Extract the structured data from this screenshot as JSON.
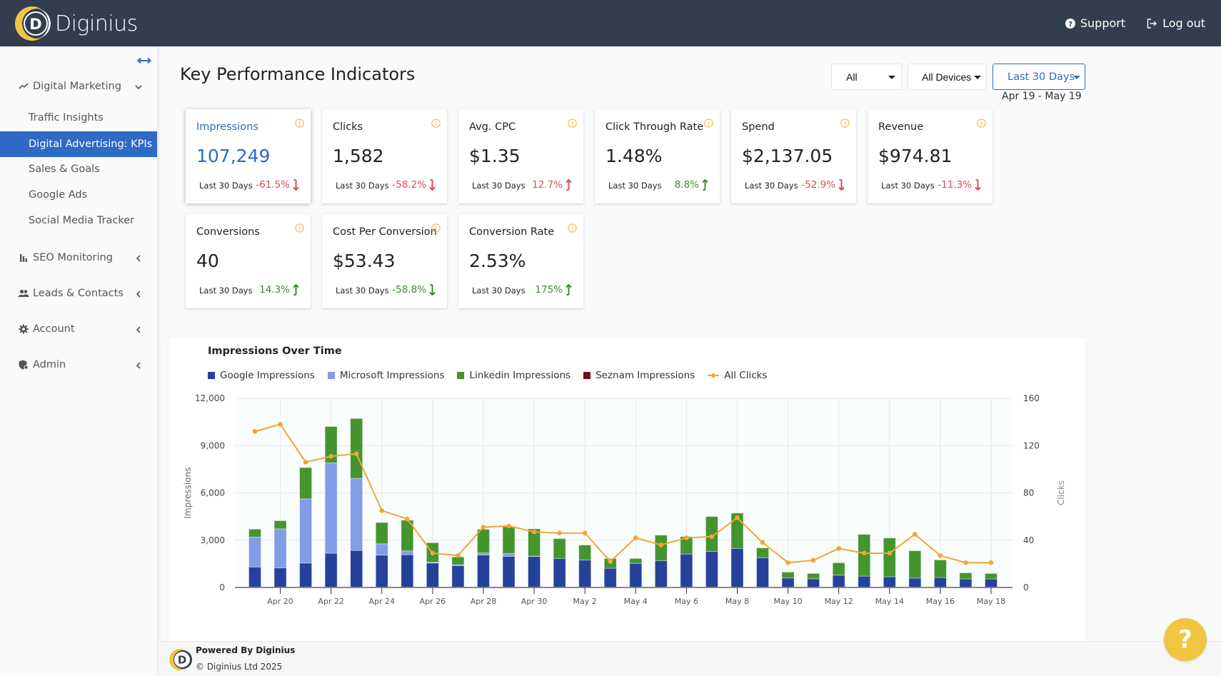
{
  "header": {
    "brand": "Diginius",
    "support_label": "Support",
    "logout_label": "Log out"
  },
  "sidebar": {
    "groups": [
      {
        "label": "Digital Marketing",
        "icon": "trend-line-icon",
        "expanded": true
      },
      {
        "label": "SEO Monitoring",
        "icon": "bar-chart-icon",
        "expanded": false
      },
      {
        "label": "Leads & Contacts",
        "icon": "people-icon",
        "expanded": false
      },
      {
        "label": "Account",
        "icon": "gear-icon",
        "expanded": false
      },
      {
        "label": "Admin",
        "icon": "admin-shield-icon",
        "expanded": false
      }
    ],
    "items": [
      {
        "label": "Traffic Insights",
        "active": false
      },
      {
        "label": "Digital Advertising: KPIs",
        "active": true
      },
      {
        "label": "Sales & Goals",
        "active": false
      },
      {
        "label": "Google Ads",
        "active": false
      },
      {
        "label": "Social Media Tracker",
        "active": false
      }
    ]
  },
  "main": {
    "title": "Key Performance Indicators",
    "filters": {
      "platform": "All",
      "device": "All Devices",
      "period": "Last 30 Days",
      "date_range": "Apr 19 - May 19"
    },
    "kpis": [
      {
        "title": "Impressions",
        "value": "107,249",
        "period": "Last 30 Days",
        "delta": "-61.5%",
        "direction": "down",
        "selected": true
      },
      {
        "title": "Clicks",
        "value": "1,582",
        "period": "Last 30 Days",
        "delta": "-58.2%",
        "direction": "down",
        "selected": false
      },
      {
        "title": "Avg. CPC",
        "value": "$1.35",
        "period": "Last 30 Days",
        "delta": "12.7%",
        "direction": "up-bad",
        "selected": false
      },
      {
        "title": "Click Through Rate",
        "value": "1.48%",
        "period": "Last 30 Days",
        "delta": "8.8%",
        "direction": "up",
        "selected": false
      },
      {
        "title": "Spend",
        "value": "$2,137.05",
        "period": "Last 30 Days",
        "delta": "-52.9%",
        "direction": "down",
        "selected": false
      },
      {
        "title": "Revenue",
        "value": "$974.81",
        "period": "Last 30 Days",
        "delta": "-11.3%",
        "direction": "down",
        "selected": false
      },
      {
        "title": "Conversions",
        "value": "40",
        "period": "Last 30 Days",
        "delta": "14.3%",
        "direction": "up",
        "selected": false
      },
      {
        "title": "Cost Per Conversion",
        "value": "$53.43",
        "period": "Last 30 Days",
        "delta": "-58.8%",
        "direction": "down-good",
        "selected": false
      },
      {
        "title": "Conversion Rate",
        "value": "2.53%",
        "period": "Last 30 Days",
        "delta": "175%",
        "direction": "up",
        "selected": false
      }
    ]
  },
  "colors": {
    "accent": "#2f6ac4",
    "header_bg": "#323e4f",
    "logo_yellow": "#f0c53f",
    "negative": "#e04a55",
    "positive": "#3f8a33",
    "google": "#25419a",
    "microsoft": "#839ce8",
    "linkedin": "#45952f",
    "seznam": "#6e0f1f",
    "clicks": "#f2a637"
  },
  "chart_data": {
    "type": "bar",
    "stacked": true,
    "title": "Impressions Over Time",
    "ylabel": "Impressions",
    "y2label": "Clicks",
    "ylim": [
      0,
      12000
    ],
    "y2lim": [
      0,
      160
    ],
    "yticks": [
      "0",
      "3,000",
      "6,000",
      "9,000",
      "12,000"
    ],
    "y2ticks": [
      "0",
      "40",
      "80",
      "120",
      "160"
    ],
    "grid": true,
    "legend_position": "top-left",
    "categories": [
      "Apr 19",
      "Apr 20",
      "Apr 21",
      "Apr 22",
      "Apr 23",
      "Apr 24",
      "Apr 25",
      "Apr 26",
      "Apr 27",
      "Apr 28",
      "Apr 29",
      "Apr 30",
      "May 1",
      "May 2",
      "May 3",
      "May 4",
      "May 5",
      "May 6",
      "May 7",
      "May 8",
      "May 9",
      "May 10",
      "May 11",
      "May 12",
      "May 13",
      "May 14",
      "May 15",
      "May 16",
      "May 17",
      "May 18"
    ],
    "xtick_labels": [
      "Apr 20",
      "Apr 22",
      "Apr 24",
      "Apr 26",
      "Apr 28",
      "Apr 30",
      "May 2",
      "May 4",
      "May 6",
      "May 8",
      "May 10",
      "May 12",
      "May 14",
      "May 16",
      "May 18"
    ],
    "series": [
      {
        "name": "Google Impressions",
        "kind": "bar",
        "color": "#25419a",
        "values": [
          1300,
          1250,
          1550,
          2170,
          2350,
          2050,
          2080,
          1550,
          1390,
          2060,
          1970,
          1970,
          1840,
          1750,
          1220,
          1530,
          1700,
          2120,
          2290,
          2480,
          1890,
          600,
          550,
          780,
          720,
          680,
          590,
          630,
          540,
          540
        ]
      },
      {
        "name": "Microsoft Impressions",
        "kind": "bar",
        "color": "#839ce8",
        "values": [
          1900,
          2470,
          4070,
          5740,
          4570,
          720,
          240,
          50,
          60,
          130,
          180,
          20,
          0,
          0,
          0,
          0,
          0,
          0,
          0,
          0,
          0,
          0,
          0,
          0,
          0,
          0,
          0,
          0,
          0,
          0
        ]
      },
      {
        "name": "Linkedin Impressions",
        "kind": "bar",
        "color": "#45952f",
        "values": [
          500,
          520,
          1990,
          2300,
          3800,
          1350,
          1950,
          1240,
          490,
          1500,
          1700,
          1730,
          1260,
          940,
          620,
          310,
          1620,
          1110,
          2210,
          2240,
          620,
          380,
          340,
          790,
          2650,
          2460,
          1740,
          1120,
          390,
          350
        ]
      },
      {
        "name": "Seznam Impressions",
        "kind": "bar",
        "color": "#6e0f1f",
        "values": [
          0,
          0,
          0,
          0,
          0,
          0,
          0,
          0,
          0,
          0,
          0,
          0,
          0,
          0,
          0,
          0,
          0,
          0,
          0,
          0,
          0,
          0,
          0,
          0,
          0,
          0,
          0,
          0,
          0,
          0
        ]
      },
      {
        "name": "All Clicks",
        "kind": "line",
        "axis": "right",
        "color": "#f2a637",
        "values": [
          132,
          138,
          106,
          111,
          113,
          65,
          58,
          29,
          27,
          51,
          52,
          47,
          46,
          46,
          22,
          42,
          36,
          42,
          43,
          59,
          38,
          21,
          23,
          33,
          29,
          29,
          45,
          27,
          21,
          21
        ]
      }
    ]
  },
  "footer": {
    "powered_by": "Powered By Diginius",
    "copyright": "© Diginius Ltd 2025"
  },
  "help_button": {
    "label": "?"
  }
}
